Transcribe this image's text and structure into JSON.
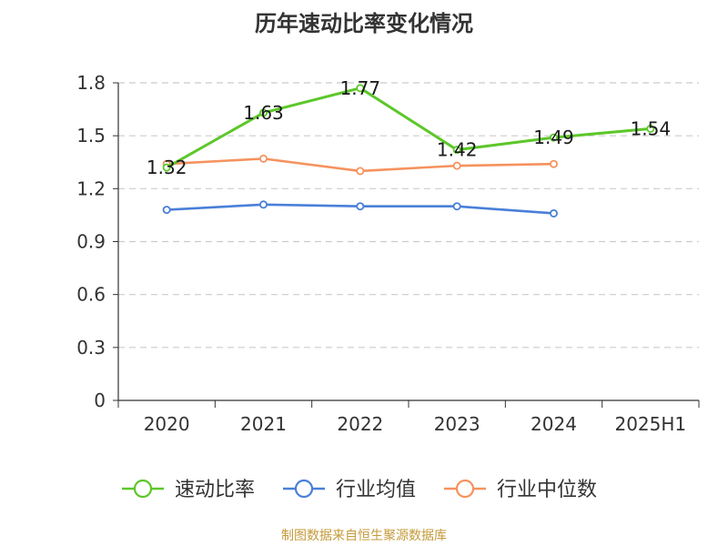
{
  "title": "历年速动比率变化情况",
  "source": "制图数据来自恒生聚源数据库",
  "chart_data": {
    "type": "line",
    "categories": [
      "2020",
      "2021",
      "2022",
      "2023",
      "2024",
      "2025H1"
    ],
    "ylim": [
      0,
      1.8
    ],
    "yticks": [
      "0",
      "0.3",
      "0.6",
      "0.9",
      "1.2",
      "1.5",
      "1.8"
    ],
    "grid": true,
    "legend_position": "bottom",
    "series": [
      {
        "name": "速动比率",
        "color": "#5cc72a",
        "values": [
          1.32,
          1.63,
          1.77,
          1.42,
          1.49,
          1.54
        ],
        "labels": [
          "1.32",
          "1.63",
          "1.77",
          "1.42",
          "1.49",
          "1.54"
        ]
      },
      {
        "name": "行业均值",
        "color": "#4a7fd8",
        "values": [
          1.08,
          1.11,
          1.1,
          1.1,
          1.06,
          null
        ]
      },
      {
        "name": "行业中位数",
        "color": "#f5925e",
        "values": [
          1.34,
          1.37,
          1.3,
          1.33,
          1.34,
          null
        ]
      }
    ]
  }
}
